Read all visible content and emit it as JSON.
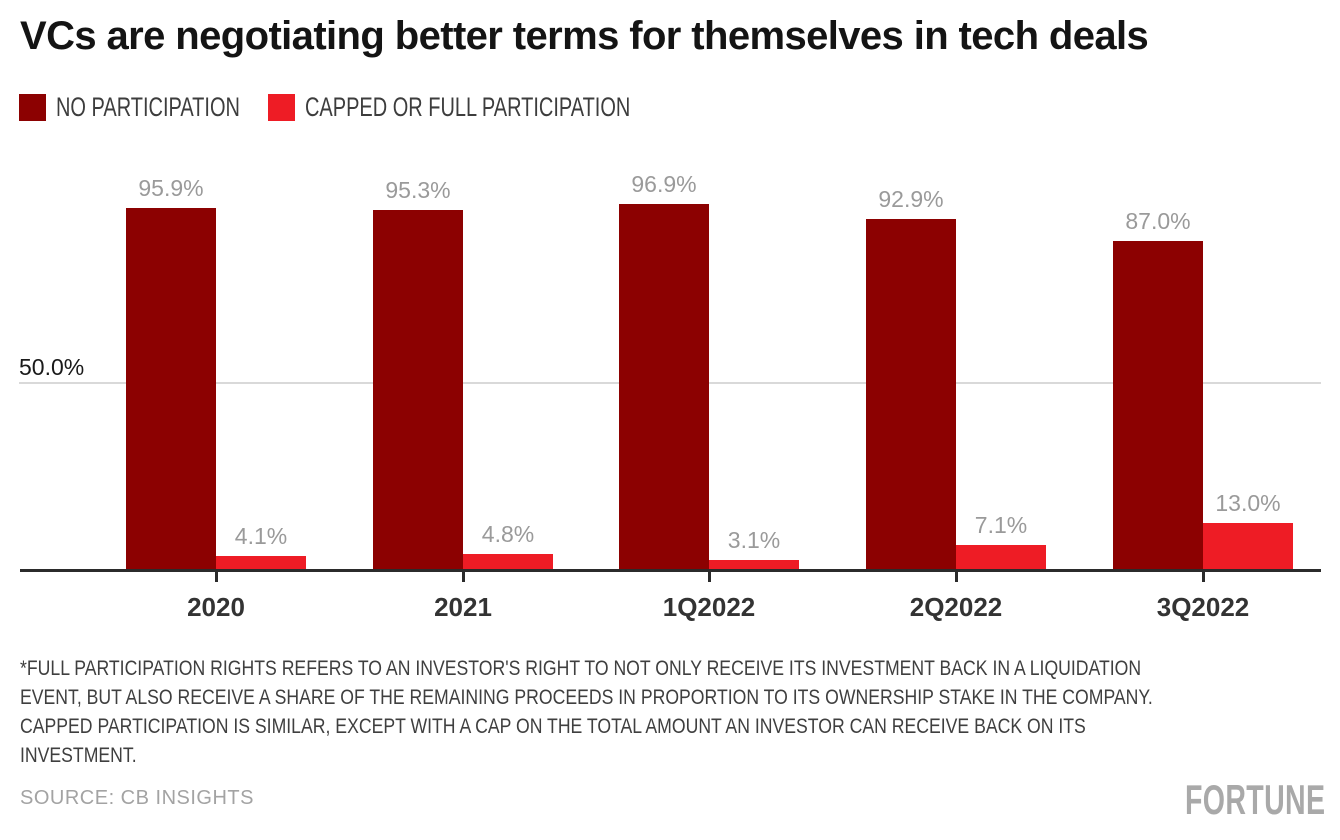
{
  "header": {
    "title": "VCs are negotiating better terms for themselves in tech deals"
  },
  "legend": [
    {
      "label": "NO PARTICIPATION",
      "color": "#8c0101"
    },
    {
      "label": "CAPPED OR FULL PARTICIPATION",
      "color": "#ee1c25"
    }
  ],
  "chart_data": {
    "type": "bar",
    "title": "VCs are negotiating better terms for themselves in tech deals",
    "categories": [
      "2020",
      "2021",
      "1Q2022",
      "2Q2022",
      "3Q2022"
    ],
    "series": [
      {
        "name": "NO PARTICIPATION",
        "color": "#8c0101",
        "values": [
          95.9,
          95.3,
          96.9,
          92.9,
          87.0
        ],
        "labels": [
          "95.9%",
          "95.3%",
          "96.9%",
          "92.9%",
          "87.0%"
        ]
      },
      {
        "name": "CAPPED OR FULL PARTICIPATION",
        "color": "#ee1c25",
        "values": [
          4.1,
          4.8,
          3.1,
          7.1,
          13.0
        ],
        "labels": [
          "4.1%",
          "4.8%",
          "3.1%",
          "7.1%",
          "13.0%"
        ]
      }
    ],
    "xlabel": "",
    "ylabel": "",
    "ylim": [
      0,
      100
    ],
    "gridlines": [
      {
        "value": 50.0,
        "label": "50.0%"
      }
    ],
    "legend_position": "top-left",
    "grid": "single horizontal line at 50%",
    "value_labels_shown": true,
    "colors": {
      "grid_line": "#d9d9d9",
      "axis_line": "#2b2b2b",
      "value_label": "#9a9a9a",
      "tick_label": "#333333"
    }
  },
  "footnote": {
    "lines": [
      "*FULL PARTICIPATION RIGHTS REFERS TO AN INVESTOR'S RIGHT TO NOT ONLY RECEIVE ITS INVESTMENT BACK IN A LIQUIDATION",
      "EVENT, BUT ALSO RECEIVE A SHARE OF THE REMAINING PROCEEDS IN PROPORTION TO ITS OWNERSHIP STAKE IN THE COMPANY.",
      "CAPPED PARTICIPATION IS SIMILAR, EXCEPT WITH A CAP ON THE TOTAL AMOUNT AN INVESTOR CAN RECEIVE BACK ON ITS",
      "INVESTMENT."
    ]
  },
  "source": "SOURCE: CB INSIGHTS",
  "branding": "FORTUNE"
}
